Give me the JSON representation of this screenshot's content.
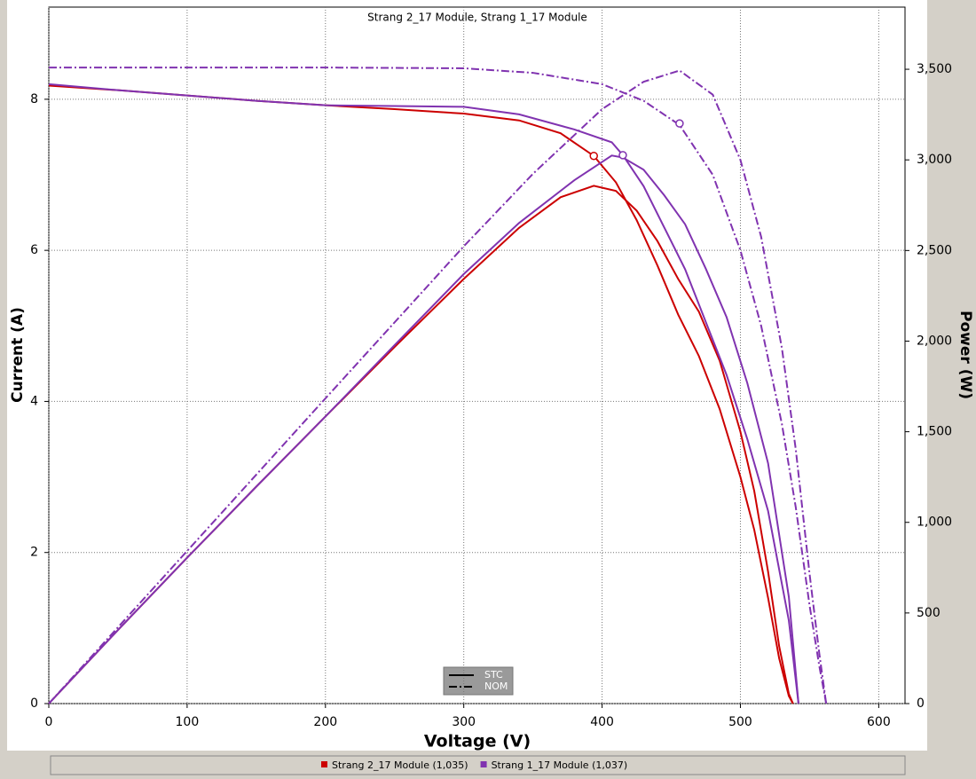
{
  "chart_data": {
    "type": "line",
    "title": "Strang 2_17 Module, Strang 1_17 Module",
    "x_label": "Voltage (V)",
    "y_label": "Current (A)",
    "y2_label": "Power (W)",
    "xlim": [
      0,
      619
    ],
    "ylim": [
      0,
      9.22
    ],
    "y2lim": [
      0,
      3843
    ],
    "xticks": [
      0,
      100,
      200,
      300,
      400,
      500,
      600
    ],
    "yticks": [
      0,
      2,
      4,
      6,
      8
    ],
    "y2ticks": [
      0,
      500,
      {
        "value": 1000,
        "label": "1,000"
      },
      {
        "value": 1500,
        "label": "1,500"
      },
      {
        "value": 2000,
        "label": "2,000"
      },
      {
        "value": 2500,
        "label": "2,500"
      },
      {
        "value": 3000,
        "label": "3,000"
      },
      {
        "value": 3500,
        "label": "3,500"
      }
    ],
    "grid": true,
    "styles": [
      {
        "name": "STC",
        "dash": "none"
      },
      {
        "name": "NOM",
        "dash": "9 3 2 3"
      }
    ],
    "series": [
      {
        "name": "Strang 2_17 Module (1,035)",
        "style": "STC",
        "color": "#cc0000",
        "axis": "y",
        "x": [
          0,
          50,
          100,
          150,
          200,
          250,
          300,
          340,
          370,
          394,
          410,
          425,
          440,
          455,
          470,
          485,
          500,
          510,
          520,
          528,
          535,
          538
        ],
        "values": [
          8.18,
          8.12,
          8.05,
          7.98,
          7.92,
          7.87,
          7.81,
          7.72,
          7.55,
          7.25,
          6.9,
          6.4,
          5.8,
          5.15,
          4.6,
          3.9,
          3.0,
          2.3,
          1.4,
          0.6,
          0.1,
          0
        ]
      },
      {
        "name": "Strang 2_17 Module (1,035)",
        "style": "STC",
        "color": "#cc0000",
        "axis": "y2",
        "x": [
          0,
          50,
          100,
          150,
          200,
          250,
          300,
          340,
          370,
          394,
          410,
          425,
          440,
          455,
          470,
          485,
          500,
          510,
          520,
          528,
          535,
          538
        ],
        "values": [
          0,
          406,
          805,
          1197,
          1584,
          1968,
          2343,
          2625,
          2794,
          2857,
          2829,
          2720,
          2552,
          2343,
          2162,
          1892,
          1500,
          1173,
          728,
          317,
          54,
          0
        ]
      },
      {
        "name": "Strang 1_17 Module (1,037)",
        "style": "STC",
        "color": "#8033b0",
        "axis": "y",
        "x": [
          0,
          50,
          100,
          150,
          200,
          250,
          300,
          340,
          380,
          407,
          415,
          430,
          445,
          460,
          475,
          490,
          505,
          520,
          535,
          542
        ],
        "values": [
          8.2,
          8.12,
          8.05,
          7.98,
          7.92,
          7.91,
          7.9,
          7.8,
          7.6,
          7.43,
          7.26,
          6.85,
          6.3,
          5.75,
          5.05,
          4.35,
          3.5,
          2.55,
          1.1,
          0
        ]
      },
      {
        "name": "Strang 1_17 Module (1,037)",
        "style": "STC",
        "color": "#8033b0",
        "axis": "y2",
        "x": [
          0,
          50,
          100,
          150,
          200,
          250,
          300,
          340,
          380,
          407,
          415,
          430,
          445,
          460,
          475,
          490,
          505,
          520,
          535,
          542
        ],
        "values": [
          0,
          406,
          805,
          1197,
          1584,
          1978,
          2370,
          2652,
          2888,
          3024,
          3013,
          2946,
          2804,
          2645,
          2399,
          2132,
          1768,
          1326,
          589,
          0
        ]
      },
      {
        "name": "Strang 1_17 Module (1,037)",
        "style": "NOM",
        "color": "#8033b0",
        "axis": "y",
        "x": [
          0,
          100,
          200,
          300,
          350,
          400,
          430,
          456,
          480,
          500,
          515,
          530,
          540,
          550,
          557,
          562
        ],
        "values": [
          8.42,
          8.42,
          8.42,
          8.41,
          8.35,
          8.2,
          7.98,
          7.66,
          7.0,
          6.0,
          5.0,
          3.7,
          2.6,
          1.3,
          0.5,
          0
        ]
      },
      {
        "name": "Strang 1_17 Module (1,037)",
        "style": "NOM",
        "color": "#8033b0",
        "axis": "y2",
        "x": [
          0,
          100,
          200,
          300,
          350,
          400,
          430,
          456,
          480,
          500,
          515,
          530,
          540,
          550,
          557,
          562
        ],
        "values": [
          0,
          842,
          1684,
          2523,
          2923,
          3280,
          3431,
          3493,
          3360,
          3000,
          2575,
          1961,
          1404,
          715,
          278,
          0
        ]
      }
    ],
    "markers": [
      {
        "x": 394,
        "y": 7.25,
        "color": "#cc0000"
      },
      {
        "x": 415,
        "y": 7.26,
        "color": "#8033b0"
      },
      {
        "x": 456,
        "y": 7.68,
        "color": "#8033b0"
      }
    ]
  }
}
